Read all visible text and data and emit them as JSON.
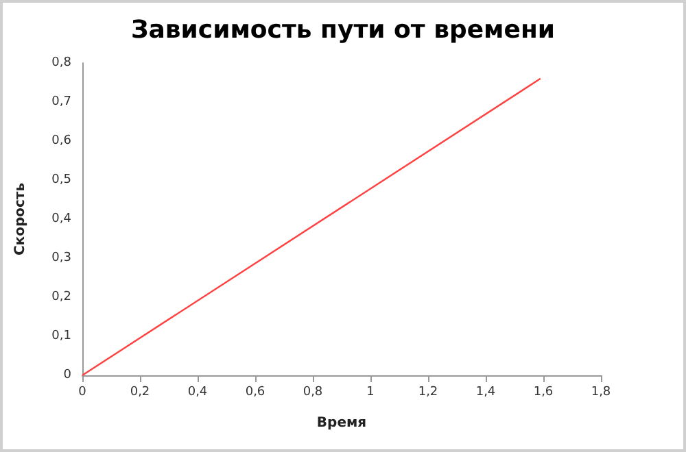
{
  "chart_data": {
    "type": "line",
    "title": "Зависимость пути от времени",
    "xlabel": "Время",
    "ylabel": "Скорость",
    "x": [
      0,
      1.59
    ],
    "series": [
      {
        "color": "#ff4040",
        "values": [
          0,
          0.76
        ]
      }
    ],
    "xlim": [
      0,
      1.8
    ],
    "xticks": [
      0,
      {
        "value": 0.2,
        "label": "0,2"
      },
      {
        "value": 0.4,
        "label": "0,4"
      },
      {
        "value": 0.6,
        "label": "0,6"
      },
      {
        "value": 0.8,
        "label": "0,8"
      },
      1,
      {
        "value": 1.2,
        "label": "1,2"
      },
      {
        "value": 1.4,
        "label": "1,4"
      },
      {
        "value": 1.6,
        "label": "1,6"
      },
      {
        "value": 1.8,
        "label": "1,8"
      }
    ],
    "ylim": [
      0,
      0.8
    ],
    "yticks": [
      0,
      {
        "value": 0.1,
        "label": "0,1"
      },
      {
        "value": 0.2,
        "label": "0,2"
      },
      {
        "value": 0.3,
        "label": "0,3"
      },
      {
        "value": 0.4,
        "label": "0,4"
      },
      {
        "value": 0.5,
        "label": "0,5"
      },
      {
        "value": 0.6,
        "label": "0,6"
      },
      {
        "value": 0.7,
        "label": "0,7"
      },
      {
        "value": 0.8,
        "label": "0,8"
      }
    ],
    "grid": false,
    "marker": "none",
    "line_style": "solid"
  }
}
